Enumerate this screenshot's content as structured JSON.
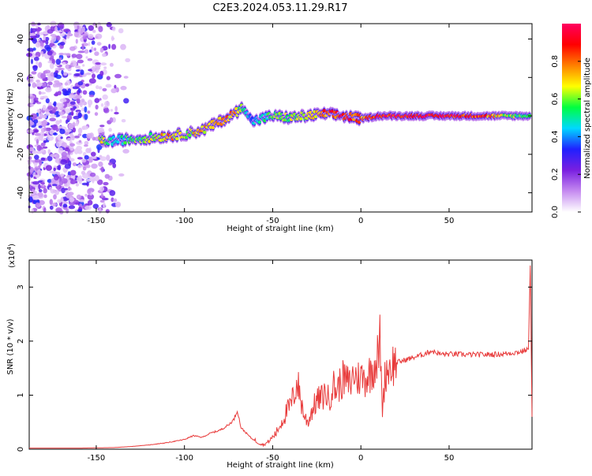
{
  "title": "C2E3.2024.053.11.29.R17",
  "chart_data": [
    {
      "type": "heatmap",
      "xlabel": "Height of straight line (km)",
      "ylabel": "Frequency (Hz)",
      "xlim": [
        -188,
        97
      ],
      "ylim": [
        -50,
        48
      ],
      "xticks": [
        -150,
        -100,
        -50,
        0,
        50
      ],
      "yticks": [
        -40,
        -20,
        0,
        20,
        40
      ],
      "xtick_labels": [
        "-150",
        "-100",
        "-50",
        "0",
        "50"
      ],
      "ytick_labels": [
        "-40",
        "-20",
        "0",
        "20",
        "40"
      ],
      "colorbar": {
        "label": "Normalized spectral amplitude",
        "range": [
          0,
          1
        ],
        "ticks": [
          0,
          0.2,
          0.4,
          0.6,
          0.8
        ],
        "tick_labels": [
          "0.0",
          "0.2",
          "0.4",
          "0.6",
          "0.8"
        ],
        "colors": [
          "#ffffff",
          "#c58af0",
          "#7a1fe0",
          "#2020ff",
          "#00d8ff",
          "#00ff40",
          "#ffff00",
          "#ff8000",
          "#ff0000",
          "#ff0060"
        ]
      },
      "ridge": [
        {
          "x": -148,
          "y": -13,
          "a": 0.7
        },
        {
          "x": -140,
          "y": -13,
          "a": 0.45
        },
        {
          "x": -130,
          "y": -12,
          "a": 0.55
        },
        {
          "x": -120,
          "y": -11.5,
          "a": 0.6
        },
        {
          "x": -110,
          "y": -10.5,
          "a": 0.75
        },
        {
          "x": -100,
          "y": -9.5,
          "a": 0.65
        },
        {
          "x": -90,
          "y": -7.5,
          "a": 0.7
        },
        {
          "x": -80,
          "y": -3,
          "a": 0.75
        },
        {
          "x": -72,
          "y": 1,
          "a": 0.75
        },
        {
          "x": -66,
          "y": 5,
          "a": 0.55
        },
        {
          "x": -62,
          "y": -3,
          "a": 0.4
        },
        {
          "x": -50,
          "y": 0,
          "a": 0.55
        },
        {
          "x": -40,
          "y": -1,
          "a": 0.6
        },
        {
          "x": -30,
          "y": 0,
          "a": 0.65
        },
        {
          "x": -20,
          "y": 1,
          "a": 0.8
        },
        {
          "x": -10,
          "y": 0,
          "a": 0.9
        },
        {
          "x": 0,
          "y": -1.5,
          "a": 0.8
        },
        {
          "x": 10,
          "y": 0,
          "a": 0.9
        },
        {
          "x": 30,
          "y": 0,
          "a": 0.95
        },
        {
          "x": 50,
          "y": 0,
          "a": 0.95
        },
        {
          "x": 70,
          "y": 0,
          "a": 0.8
        },
        {
          "x": 85,
          "y": 0,
          "a": 0.6
        },
        {
          "x": 96,
          "y": 0,
          "a": 0.5
        }
      ]
    },
    {
      "type": "line",
      "xlabel": "Height of straight line (km)",
      "ylabel": "SNR (10 * v/v)",
      "yscale_label": "(x10",
      "yscale_exp": "4",
      "yscale_close": ")",
      "xlim": [
        -188,
        97
      ],
      "ylim": [
        0,
        3.5
      ],
      "xticks": [
        -150,
        -100,
        -50,
        0,
        50
      ],
      "yticks": [
        0,
        1,
        2,
        3
      ],
      "xtick_labels": [
        "-150",
        "-100",
        "-50",
        "0",
        "50"
      ],
      "ytick_labels": [
        "0",
        "1",
        "2",
        "3"
      ],
      "series": [
        {
          "color": "#e83a3a",
          "points": [
            [
              -188,
              0.02
            ],
            [
              -160,
              0.02
            ],
            [
              -140,
              0.03
            ],
            [
              -130,
              0.05
            ],
            [
              -120,
              0.08
            ],
            [
              -110,
              0.12
            ],
            [
              -100,
              0.18
            ],
            [
              -95,
              0.25
            ],
            [
              -90,
              0.22
            ],
            [
              -85,
              0.3
            ],
            [
              -80,
              0.35
            ],
            [
              -75,
              0.45
            ],
            [
              -72,
              0.55
            ],
            [
              -70,
              0.72
            ],
            [
              -68,
              0.4
            ],
            [
              -65,
              0.3
            ],
            [
              -62,
              0.2
            ],
            [
              -58,
              0.12
            ],
            [
              -55,
              0.08
            ],
            [
              -52,
              0.15
            ],
            [
              -48,
              0.3
            ],
            [
              -45,
              0.5
            ],
            [
              -42,
              0.7
            ],
            [
              -40,
              0.8
            ],
            [
              -38,
              1.0
            ],
            [
              -36,
              1.25
            ],
            [
              -34,
              0.9
            ],
            [
              -32,
              0.6
            ],
            [
              -30,
              0.5
            ],
            [
              -28,
              0.7
            ],
            [
              -25,
              0.9
            ],
            [
              -22,
              0.95
            ],
            [
              -20,
              1.05
            ],
            [
              -18,
              0.9
            ],
            [
              -16,
              1.2
            ],
            [
              -14,
              1.1
            ],
            [
              -12,
              1.2
            ],
            [
              -10,
              1.3
            ],
            [
              -8,
              1.25
            ],
            [
              -6,
              1.2
            ],
            [
              -4,
              1.4
            ],
            [
              -2,
              1.3
            ],
            [
              0,
              1.35
            ],
            [
              2,
              1.3
            ],
            [
              5,
              1.4
            ],
            [
              8,
              1.6
            ],
            [
              10,
              1.75
            ],
            [
              11,
              2.05
            ],
            [
              12,
              0.7
            ],
            [
              14,
              1.45
            ],
            [
              17,
              1.55
            ],
            [
              20,
              1.6
            ],
            [
              25,
              1.65
            ],
            [
              30,
              1.7
            ],
            [
              35,
              1.75
            ],
            [
              40,
              1.82
            ],
            [
              45,
              1.76
            ],
            [
              50,
              1.76
            ],
            [
              60,
              1.75
            ],
            [
              70,
              1.75
            ],
            [
              80,
              1.76
            ],
            [
              90,
              1.8
            ],
            [
              95,
              1.85
            ],
            [
              96,
              3.4
            ],
            [
              97,
              0.6
            ]
          ]
        }
      ]
    }
  ]
}
